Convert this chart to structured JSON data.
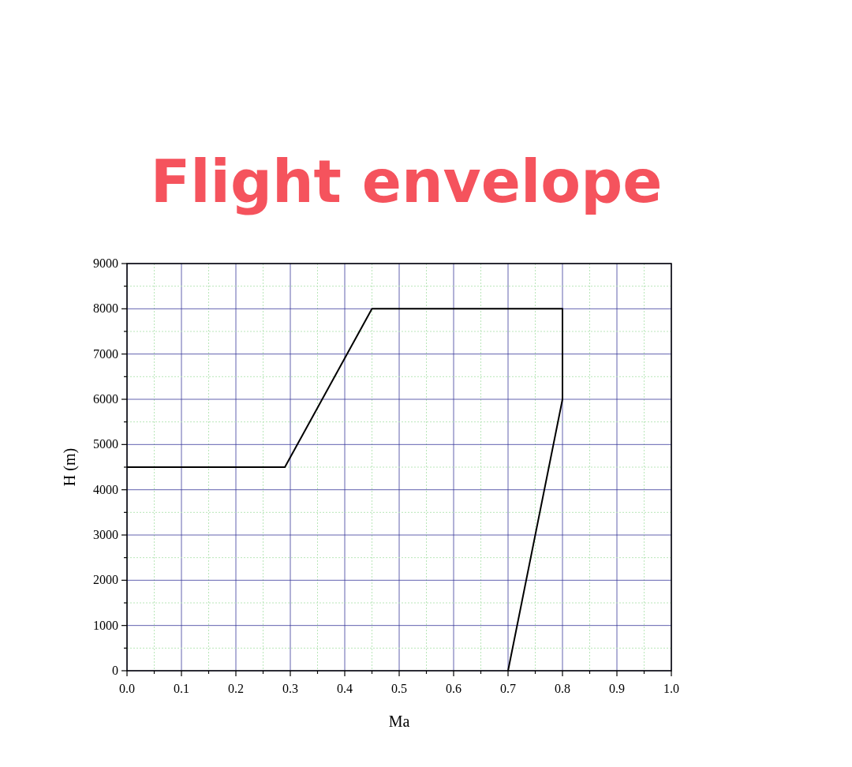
{
  "chart_data": {
    "type": "line",
    "title": "Flight envelope",
    "xlabel": "Ma",
    "ylabel": "H (m)",
    "series": [
      {
        "color": "#000000",
        "x": [
          0,
          0.29,
          0.45,
          0.8,
          0.8,
          0.7
        ],
        "values": [
          4500,
          4500,
          8000,
          8000,
          6000,
          0
        ]
      }
    ],
    "xlim": [
      0,
      1
    ],
    "ylim": [
      0,
      9000
    ],
    "xticks": [
      {
        "value": 0,
        "label": "0.0"
      },
      {
        "value": 0.05,
        "label": null
      },
      {
        "value": 0.1,
        "label": "0.1"
      },
      {
        "value": 0.15,
        "label": null
      },
      {
        "value": 0.2,
        "label": "0.2"
      },
      {
        "value": 0.25,
        "label": null
      },
      {
        "value": 0.3,
        "label": "0.3"
      },
      {
        "value": 0.35,
        "label": null
      },
      {
        "value": 0.4,
        "label": "0.4"
      },
      {
        "value": 0.45,
        "label": null
      },
      {
        "value": 0.5,
        "label": "0.5"
      },
      {
        "value": 0.55,
        "label": null
      },
      {
        "value": 0.6,
        "label": "0.6"
      },
      {
        "value": 0.65,
        "label": null
      },
      {
        "value": 0.7,
        "label": "0.7"
      },
      {
        "value": 0.75,
        "label": null
      },
      {
        "value": 0.8,
        "label": "0.8"
      },
      {
        "value": 0.85,
        "label": null
      },
      {
        "value": 0.9,
        "label": "0.9"
      },
      {
        "value": 0.95,
        "label": null
      },
      {
        "value": 1,
        "label": "1.0"
      }
    ],
    "yticks": [
      0,
      {
        "value": 500,
        "label": null
      },
      1000,
      {
        "value": 1500,
        "label": null
      },
      2000,
      {
        "value": 2500,
        "label": null
      },
      3000,
      {
        "value": 3500,
        "label": null
      },
      4000,
      {
        "value": 4500,
        "label": null
      },
      5000,
      {
        "value": 5500,
        "label": null
      },
      6000,
      {
        "value": 6500,
        "label": null
      },
      7000,
      {
        "value": 7500,
        "label": null
      },
      8000,
      {
        "value": 8500,
        "label": null
      },
      9000
    ],
    "grid": true,
    "marker": "none",
    "line_style": "solid"
  }
}
